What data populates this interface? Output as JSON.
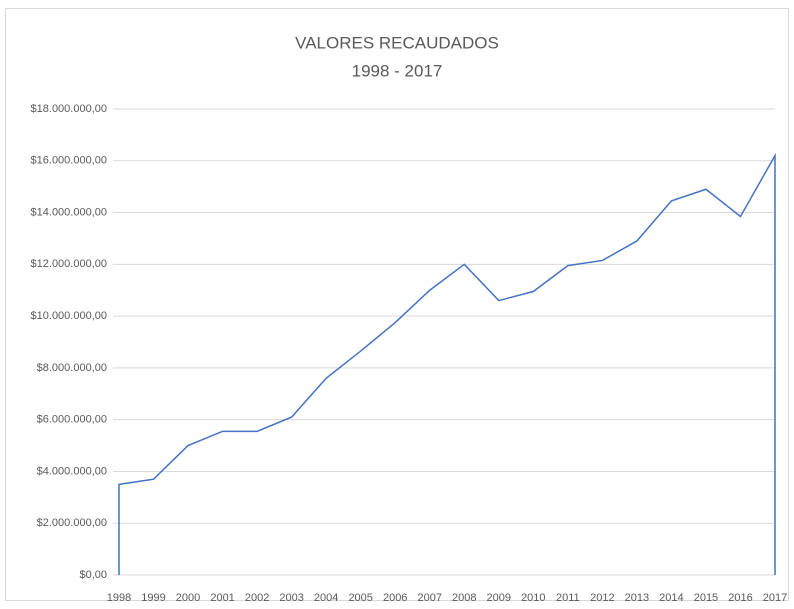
{
  "chart_data": {
    "type": "area",
    "title": "VALORES RECAUDADOS",
    "subtitle": "1998 - 2017",
    "categories": [
      "1998",
      "1999",
      "2000",
      "2001",
      "2002",
      "2003",
      "2004",
      "2005",
      "2006",
      "2007",
      "2008",
      "2009",
      "2010",
      "2011",
      "2012",
      "2013",
      "2014",
      "2015",
      "2016",
      "2017"
    ],
    "values": [
      3500000,
      3700000,
      5000000,
      5550000,
      5550000,
      6100000,
      7600000,
      8650000,
      9750000,
      11000000,
      12000000,
      10600000,
      10950000,
      11950000,
      12150000,
      12900000,
      14450000,
      14900000,
      13850000,
      16200000
    ],
    "color": "#4472c4",
    "ylim": [
      0,
      18000000
    ],
    "yticks": [
      {
        "value": 0,
        "label": "$0,00"
      },
      {
        "value": 2000000,
        "label": "$2.000.000,00"
      },
      {
        "value": 4000000,
        "label": "$4.000.000,00"
      },
      {
        "value": 6000000,
        "label": "$6.000.000,00"
      },
      {
        "value": 8000000,
        "label": "$8.000.000,00"
      },
      {
        "value": 10000000,
        "label": "$10.000.000,00"
      },
      {
        "value": 12000000,
        "label": "$12.000.000,00"
      },
      {
        "value": 14000000,
        "label": "$14.000.000,00"
      },
      {
        "value": 16000000,
        "label": "$16.000.000,00"
      },
      {
        "value": 18000000,
        "label": "$18.000.000,00"
      }
    ],
    "grid": true
  }
}
